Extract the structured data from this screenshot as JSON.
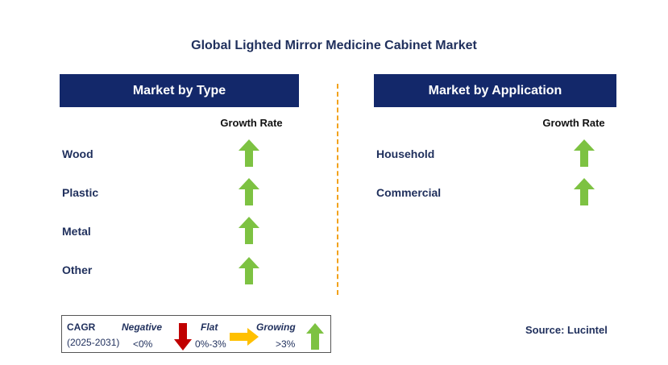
{
  "title": "Global Lighted Mirror Medicine Cabinet Market",
  "left_panel": {
    "header": "Market by Type",
    "growth_label": "Growth Rate",
    "rows": [
      {
        "label": "Wood",
        "trend": "growing"
      },
      {
        "label": "Plastic",
        "trend": "growing"
      },
      {
        "label": "Metal",
        "trend": "growing"
      },
      {
        "label": "Other",
        "trend": "growing"
      }
    ]
  },
  "right_panel": {
    "header": "Market by Application",
    "growth_label": "Growth Rate",
    "rows": [
      {
        "label": "Household",
        "trend": "growing"
      },
      {
        "label": "Commercial",
        "trend": "growing"
      }
    ]
  },
  "legend": {
    "cagr": "CAGR",
    "period": "(2025-2031)",
    "negative": "Negative",
    "negative_value": "<0%",
    "flat": "Flat",
    "flat_value": "0%-3%",
    "growing": "Growing",
    "growing_value": ">3%"
  },
  "source": "Source: Lucintel",
  "colors": {
    "header_bg": "#13286a",
    "growing": "#7dc242",
    "negative": "#c00000",
    "flat": "#ffc000",
    "divider": "#f2a21b"
  }
}
